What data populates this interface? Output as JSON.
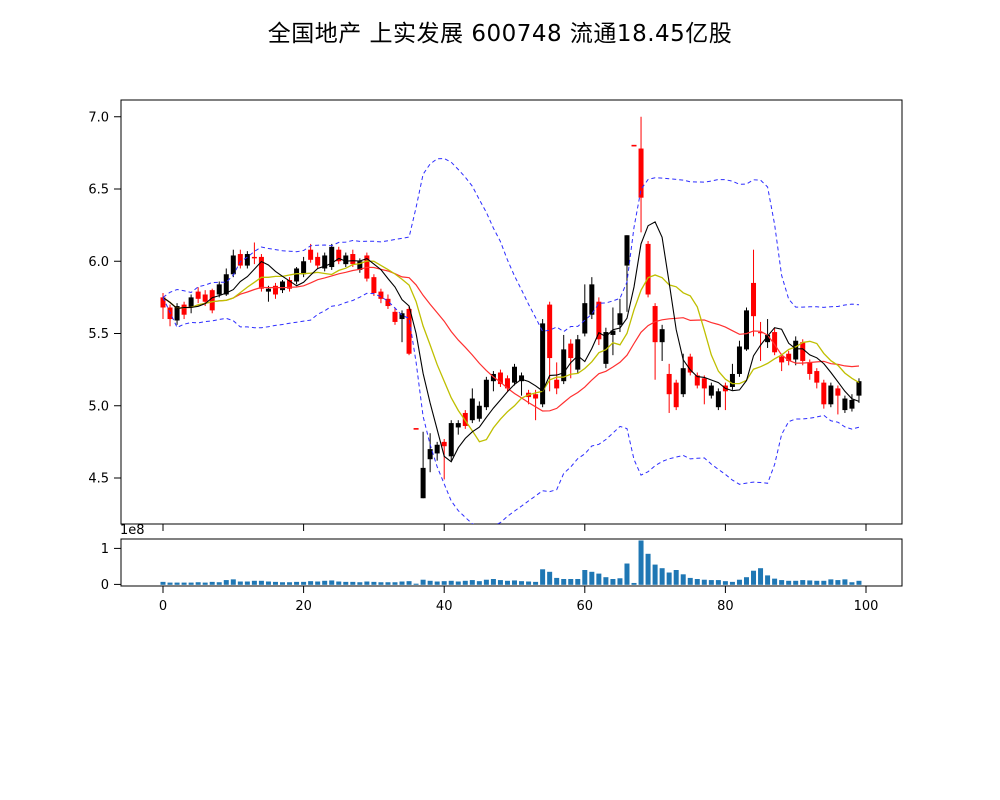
{
  "title": "全国地产  上实发展  600748  流通18.45亿股",
  "colors": {
    "background": "#ffffff",
    "axis": "#000000",
    "candle_red": "#ff0000",
    "candle_black": "#000000",
    "ma5": "#000000",
    "ma10": "#bfbf00",
    "ma20": "#ff3030",
    "bollinger_band": "#2d2dff",
    "volume_bar": "#1f77b4"
  },
  "chart_data": {
    "type": "candlestick+volume",
    "title": "全国地产  上实发展  600748  流通18.45亿股",
    "x_start": 0,
    "x_step": 1,
    "x_axis": {
      "ticks": [
        0,
        20,
        40,
        60,
        80,
        100
      ],
      "label": ""
    },
    "price_axis": {
      "ticks": [
        7.0,
        6.5,
        6.0,
        5.5,
        5.0,
        4.5
      ],
      "ylim": [
        4.18,
        7.12
      ],
      "label": ""
    },
    "volume_axis": {
      "ticks": [
        1,
        0
      ],
      "offset_label": "1e8",
      "unit": 100000000
    },
    "color_rule": "close>=open -> red body, close<open -> black body",
    "indicators": {
      "ma_windows": [
        5,
        10,
        20
      ],
      "bollinger": {
        "window": 20,
        "mult": 2,
        "style": "dashed"
      }
    },
    "columns": [
      "open",
      "high",
      "low",
      "close",
      "volume_1e8"
    ],
    "candles": [
      [
        5.68,
        5.78,
        5.6,
        5.75,
        0.07
      ],
      [
        5.6,
        5.7,
        5.55,
        5.68,
        0.05
      ],
      [
        5.69,
        5.71,
        5.56,
        5.59,
        0.05
      ],
      [
        5.63,
        5.72,
        5.6,
        5.7,
        0.05
      ],
      [
        5.75,
        5.77,
        5.64,
        5.68,
        0.05
      ],
      [
        5.74,
        5.82,
        5.71,
        5.79,
        0.06
      ],
      [
        5.72,
        5.8,
        5.69,
        5.77,
        0.05
      ],
      [
        5.66,
        5.81,
        5.64,
        5.8,
        0.07
      ],
      [
        5.84,
        5.86,
        5.75,
        5.77,
        0.06
      ],
      [
        5.91,
        5.95,
        5.76,
        5.77,
        0.12
      ],
      [
        6.04,
        6.08,
        5.89,
        5.91,
        0.14
      ],
      [
        5.97,
        6.08,
        5.95,
        6.05,
        0.08
      ],
      [
        6.05,
        6.07,
        5.95,
        5.97,
        0.08
      ],
      [
        6.02,
        6.13,
        5.98,
        6.03,
        0.1
      ],
      [
        5.81,
        6.05,
        5.79,
        6.03,
        0.1
      ],
      [
        5.81,
        5.83,
        5.72,
        5.79,
        0.08
      ],
      [
        5.77,
        5.85,
        5.74,
        5.83,
        0.07
      ],
      [
        5.86,
        5.87,
        5.78,
        5.8,
        0.06
      ],
      [
        5.81,
        5.89,
        5.79,
        5.87,
        0.06
      ],
      [
        5.95,
        5.96,
        5.84,
        5.86,
        0.07
      ],
      [
        6.0,
        6.03,
        5.89,
        5.91,
        0.07
      ],
      [
        6.01,
        6.12,
        5.99,
        6.08,
        0.09
      ],
      [
        5.97,
        6.06,
        5.95,
        6.03,
        0.08
      ],
      [
        6.04,
        6.06,
        5.93,
        5.95,
        0.1
      ],
      [
        6.1,
        6.12,
        5.94,
        5.96,
        0.11
      ],
      [
        6.0,
        6.1,
        5.98,
        6.08,
        0.08
      ],
      [
        6.04,
        6.06,
        5.96,
        5.98,
        0.07
      ],
      [
        5.98,
        6.08,
        5.96,
        6.05,
        0.07
      ],
      [
        6.0,
        6.02,
        5.92,
        5.94,
        0.06
      ],
      [
        5.88,
        6.06,
        5.86,
        6.04,
        0.08
      ],
      [
        5.78,
        5.91,
        5.76,
        5.89,
        0.07
      ],
      [
        5.74,
        5.81,
        5.71,
        5.79,
        0.06
      ],
      [
        5.69,
        5.77,
        5.67,
        5.74,
        0.06
      ],
      [
        5.58,
        5.68,
        5.56,
        5.65,
        0.06
      ],
      [
        5.64,
        5.66,
        5.44,
        5.6,
        0.08
      ],
      [
        5.36,
        5.69,
        5.35,
        5.67,
        0.09
      ],
      [
        4.84,
        4.84,
        4.84,
        4.84,
        0.02
      ],
      [
        4.57,
        4.82,
        4.36,
        4.36,
        0.13
      ],
      [
        4.7,
        4.81,
        4.54,
        4.63,
        0.1
      ],
      [
        4.73,
        4.75,
        4.62,
        4.67,
        0.08
      ],
      [
        4.72,
        4.77,
        4.49,
        4.75,
        0.09
      ],
      [
        4.88,
        4.9,
        4.62,
        4.65,
        0.1
      ],
      [
        4.88,
        4.9,
        4.8,
        4.85,
        0.08
      ],
      [
        4.86,
        4.97,
        4.84,
        4.95,
        0.1
      ],
      [
        5.05,
        5.12,
        4.88,
        4.9,
        0.12
      ],
      [
        5.0,
        5.03,
        4.89,
        4.91,
        0.09
      ],
      [
        5.18,
        5.2,
        4.97,
        4.99,
        0.13
      ],
      [
        5.22,
        5.24,
        5.1,
        5.17,
        0.15
      ],
      [
        5.15,
        5.25,
        5.13,
        5.23,
        0.12
      ],
      [
        5.12,
        5.21,
        5.1,
        5.19,
        0.1
      ],
      [
        5.27,
        5.29,
        5.14,
        5.16,
        0.11
      ],
      [
        5.21,
        5.23,
        5.07,
        5.17,
        0.09
      ],
      [
        5.06,
        5.11,
        5.01,
        5.09,
        0.08
      ],
      [
        5.05,
        5.11,
        4.9,
        5.08,
        0.07
      ],
      [
        5.57,
        5.6,
        4.99,
        5.01,
        0.42
      ],
      [
        5.33,
        5.72,
        5.1,
        5.7,
        0.35
      ],
      [
        5.12,
        5.3,
        5.08,
        5.18,
        0.18
      ],
      [
        5.39,
        5.49,
        5.15,
        5.17,
        0.15
      ],
      [
        5.33,
        5.46,
        5.19,
        5.43,
        0.15
      ],
      [
        5.46,
        5.49,
        5.22,
        5.25,
        0.15
      ],
      [
        5.71,
        5.84,
        5.48,
        5.5,
        0.4
      ],
      [
        5.84,
        5.89,
        5.6,
        5.63,
        0.35
      ],
      [
        5.46,
        5.75,
        5.42,
        5.72,
        0.3
      ],
      [
        5.51,
        5.54,
        5.26,
        5.29,
        0.2
      ],
      [
        5.52,
        5.68,
        5.35,
        5.49,
        0.15
      ],
      [
        5.64,
        5.74,
        5.51,
        5.56,
        0.17
      ],
      [
        6.18,
        6.18,
        5.65,
        5.97,
        0.58
      ],
      [
        6.8,
        6.8,
        6.8,
        6.8,
        0.04
      ],
      [
        6.44,
        7.0,
        6.2,
        6.78,
        1.22
      ],
      [
        5.77,
        6.14,
        5.75,
        6.12,
        0.85
      ],
      [
        5.44,
        5.71,
        5.18,
        5.69,
        0.55
      ],
      [
        5.53,
        5.56,
        5.31,
        5.44,
        0.45
      ],
      [
        5.08,
        5.29,
        4.95,
        5.22,
        0.33
      ],
      [
        4.99,
        5.18,
        4.97,
        5.16,
        0.4
      ],
      [
        5.26,
        5.36,
        5.06,
        5.08,
        0.28
      ],
      [
        5.23,
        5.36,
        5.21,
        5.34,
        0.18
      ],
      [
        5.14,
        5.23,
        5.12,
        5.21,
        0.15
      ],
      [
        5.12,
        5.21,
        5.01,
        5.19,
        0.13
      ],
      [
        5.14,
        5.16,
        5.05,
        5.07,
        0.12
      ],
      [
        5.1,
        5.12,
        4.97,
        4.99,
        0.12
      ],
      [
        5.1,
        5.16,
        4.97,
        5.14,
        0.09
      ],
      [
        5.22,
        5.29,
        5.11,
        5.13,
        0.07
      ],
      [
        5.41,
        5.45,
        5.2,
        5.22,
        0.13
      ],
      [
        5.66,
        5.68,
        5.38,
        5.39,
        0.2
      ],
      [
        5.62,
        6.08,
        5.48,
        5.85,
        0.38
      ],
      [
        5.51,
        5.58,
        5.31,
        5.51,
        0.45
      ],
      [
        5.49,
        5.6,
        5.4,
        5.44,
        0.25
      ],
      [
        5.37,
        5.54,
        5.35,
        5.51,
        0.16
      ],
      [
        5.3,
        5.36,
        5.24,
        5.34,
        0.12
      ],
      [
        5.31,
        5.38,
        5.28,
        5.36,
        0.1
      ],
      [
        5.45,
        5.48,
        5.28,
        5.32,
        0.1
      ],
      [
        5.31,
        5.46,
        5.28,
        5.44,
        0.12
      ],
      [
        5.22,
        5.32,
        5.18,
        5.3,
        0.11
      ],
      [
        5.16,
        5.26,
        5.12,
        5.24,
        0.1
      ],
      [
        5.01,
        5.18,
        4.98,
        5.16,
        0.1
      ],
      [
        5.14,
        5.16,
        4.99,
        5.01,
        0.14
      ],
      [
        5.07,
        5.14,
        4.94,
        5.12,
        0.12
      ],
      [
        5.05,
        5.07,
        4.95,
        4.97,
        0.14
      ],
      [
        5.04,
        5.08,
        4.96,
        4.98,
        0.06
      ],
      [
        5.17,
        5.19,
        5.02,
        5.07,
        0.1
      ]
    ]
  }
}
